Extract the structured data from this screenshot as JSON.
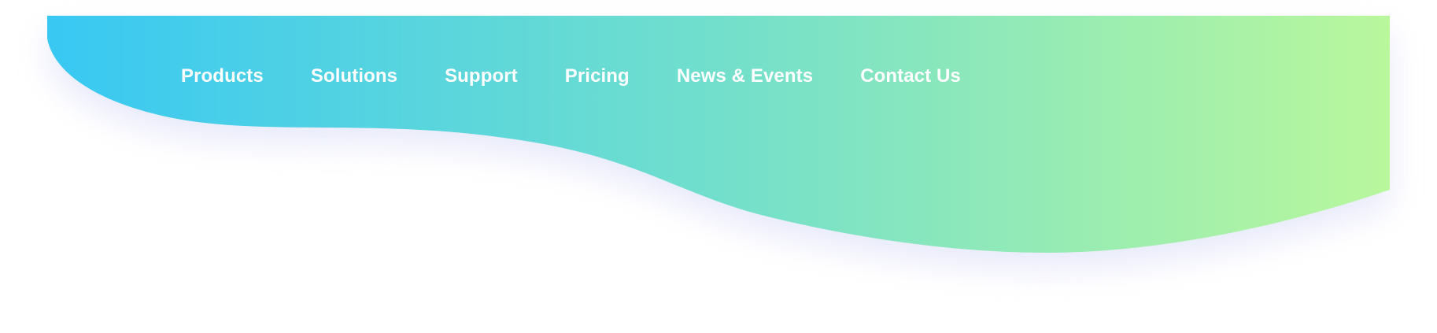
{
  "colors": {
    "gradient_start": "#38c8f3",
    "gradient_mid": "#72dfcc",
    "gradient_end": "#b9f79c",
    "nav_text": "#ffffff",
    "shadow": "#d6d9f6"
  },
  "nav": {
    "items": [
      {
        "label": "Products"
      },
      {
        "label": "Solutions"
      },
      {
        "label": "Support"
      },
      {
        "label": "Pricing"
      },
      {
        "label": "News & Events"
      },
      {
        "label": "Contact Us"
      }
    ]
  }
}
